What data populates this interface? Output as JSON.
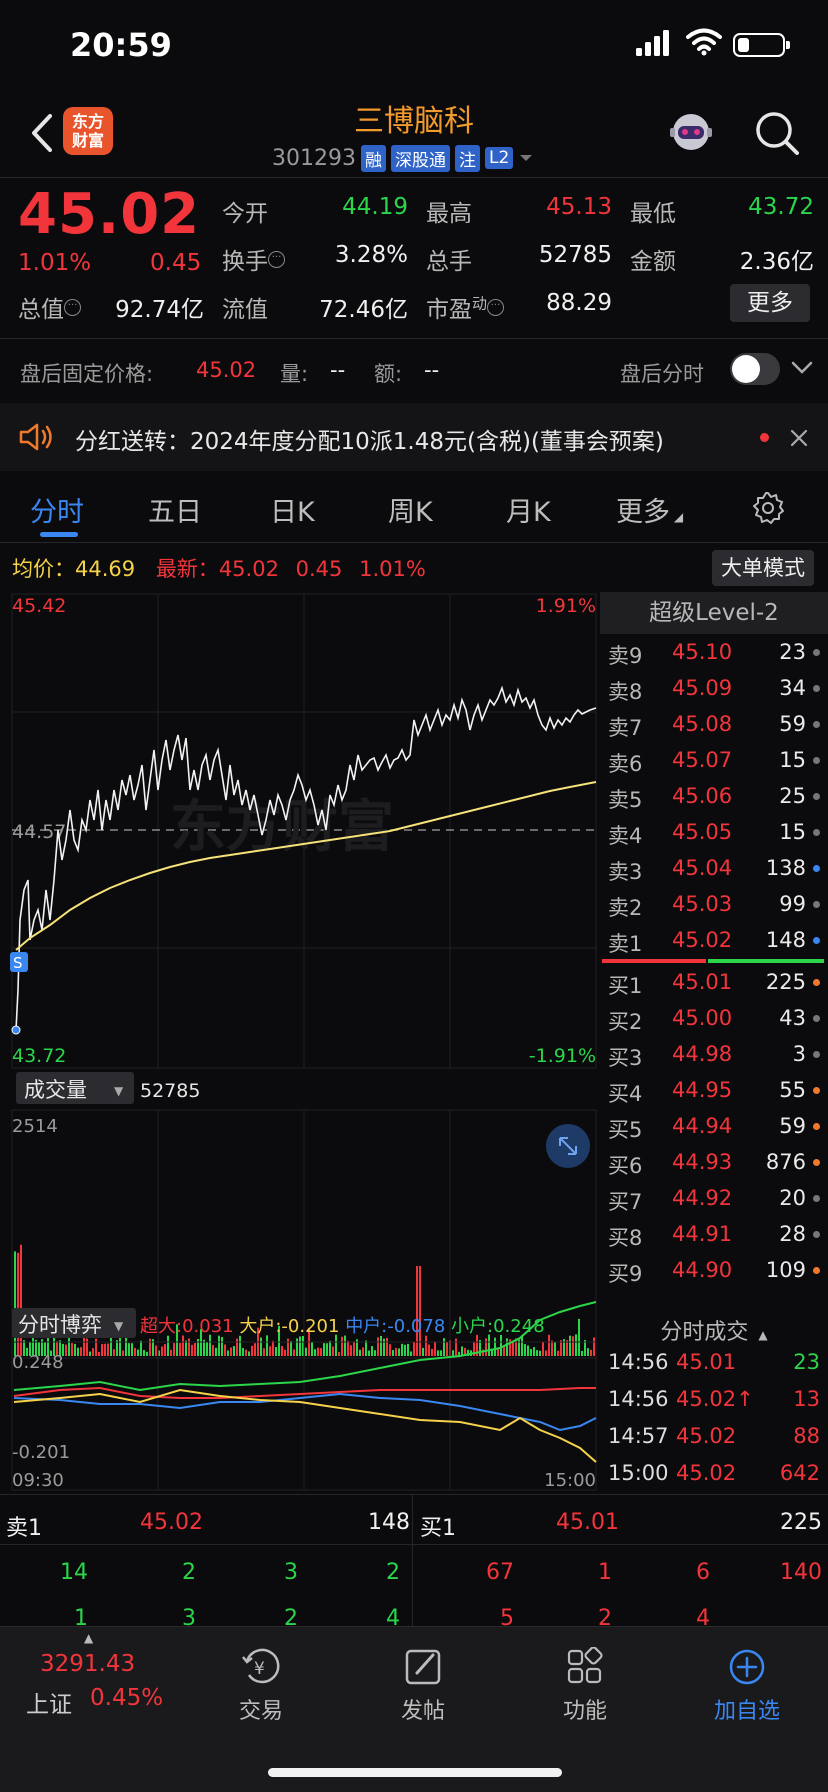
{
  "status": {
    "time": "20:59"
  },
  "header": {
    "logo_line1": "东方",
    "logo_line2": "财富",
    "stock_name": "三博脑科",
    "stock_code": "301293",
    "tags": [
      "融",
      "深股通",
      "注",
      "L2"
    ]
  },
  "quote": {
    "price": "45.02",
    "change_pct": "1.01%",
    "change": "0.45",
    "open_label": "今开",
    "open": "44.19",
    "high_label": "最高",
    "high": "45.13",
    "low_label": "最低",
    "low": "43.72",
    "turnover_label": "换手",
    "turnover": "3.28%",
    "volume_label": "总手",
    "volume": "52785",
    "amount_label": "金额",
    "amount": "2.36亿",
    "mktcap_label": "总值",
    "mktcap": "92.74亿",
    "float_label": "流值",
    "float": "72.46亿",
    "pe_label": "市盈",
    "pe_sup": "动",
    "pe": "88.29",
    "more_label": "更多"
  },
  "after_hours": {
    "price_label": "盘后固定价格:",
    "price": "45.02",
    "vol_label": "量:",
    "vol": "--",
    "amt_label": "额:",
    "amt": "--",
    "toggle_label": "盘后分时"
  },
  "notice": {
    "text": "分红送转：2024年度分配10派1.48元(含税)(董事会预案)"
  },
  "tabs": [
    "分时",
    "五日",
    "日K",
    "周K",
    "月K",
    "更多"
  ],
  "chart": {
    "avg_label": "均价：",
    "avg": "44.69",
    "latest_label": "最新：",
    "latest": "45.02",
    "latest_change": "0.45",
    "latest_pct": "1.01%",
    "big_order_label": "大单模式",
    "y_top": "45.42",
    "y_mid": "44.57",
    "y_bottom": "43.72",
    "pct_top": "1.91%",
    "pct_bottom": "-1.91%",
    "s_marker": "S",
    "watermark": "东方财富",
    "volume_label": "成交量",
    "volume_total": "52785",
    "volume_max": "2514",
    "game_label": "分时博弈",
    "game_super_label": "超大:",
    "game_super": "0.031",
    "game_large_label": "大户:",
    "game_large": "-0.201",
    "game_medium_label": "中户:",
    "game_medium": "-0.078",
    "game_small_label": "小户:",
    "game_small": "0.248",
    "game_top": "0.248",
    "game_bottom": "-0.201",
    "time_start": "09:30",
    "time_end": "15:00"
  },
  "level2": {
    "title": "超级Level-2",
    "asks": [
      {
        "label": "卖9",
        "price": "45.10",
        "vol": "23",
        "dot": "#777"
      },
      {
        "label": "卖8",
        "price": "45.09",
        "vol": "34",
        "dot": "#777"
      },
      {
        "label": "卖7",
        "price": "45.08",
        "vol": "59",
        "dot": "#777"
      },
      {
        "label": "卖6",
        "price": "45.07",
        "vol": "15",
        "dot": "#777"
      },
      {
        "label": "卖5",
        "price": "45.06",
        "vol": "25",
        "dot": "#777"
      },
      {
        "label": "卖4",
        "price": "45.05",
        "vol": "15",
        "dot": "#777"
      },
      {
        "label": "卖3",
        "price": "45.04",
        "vol": "138",
        "dot": "#3a87f2"
      },
      {
        "label": "卖2",
        "price": "45.03",
        "vol": "99",
        "dot": "#777"
      },
      {
        "label": "卖1",
        "price": "45.02",
        "vol": "148",
        "dot": "#3a87f2"
      }
    ],
    "bids": [
      {
        "label": "买1",
        "price": "45.01",
        "vol": "225",
        "dot": "#f07a2a"
      },
      {
        "label": "买2",
        "price": "45.00",
        "vol": "43",
        "dot": "#777"
      },
      {
        "label": "买3",
        "price": "44.98",
        "vol": "3",
        "dot": "#777"
      },
      {
        "label": "买4",
        "price": "44.95",
        "vol": "55",
        "dot": "#f07a2a"
      },
      {
        "label": "买5",
        "price": "44.94",
        "vol": "59",
        "dot": "#f07a2a"
      },
      {
        "label": "买6",
        "price": "44.93",
        "vol": "876",
        "dot": "#f07a2a"
      },
      {
        "label": "买7",
        "price": "44.92",
        "vol": "20",
        "dot": "#777"
      },
      {
        "label": "买8",
        "price": "44.91",
        "vol": "28",
        "dot": "#777"
      },
      {
        "label": "买9",
        "price": "44.90",
        "vol": "109",
        "dot": "#f07a2a"
      }
    ],
    "trades_title": "分时成交",
    "trades": [
      {
        "time": "14:56",
        "price": "45.01",
        "vol": "23",
        "color": "green"
      },
      {
        "time": "14:56",
        "price": "45.02↑",
        "vol": "13",
        "color": "red"
      },
      {
        "time": "14:57",
        "price": "45.02",
        "vol": "88",
        "color": "red"
      },
      {
        "time": "15:00",
        "price": "45.02",
        "vol": "642",
        "color": "red"
      }
    ]
  },
  "orderbook": {
    "sell_label": "卖1",
    "sell_price": "45.02",
    "sell_vol": "148",
    "buy_label": "买1",
    "buy_price": "45.01",
    "buy_vol": "225",
    "sell_queue_row1": [
      "14",
      "2",
      "3",
      "2"
    ],
    "buy_queue_row1": [
      "67",
      "1",
      "6",
      "140"
    ],
    "sell_queue_row2": [
      "1",
      "3",
      "2",
      "4"
    ],
    "buy_queue_row2": [
      "5",
      "2",
      "4",
      ""
    ]
  },
  "nav": {
    "index_value": "3291.43",
    "index_name": "上证",
    "index_pct": "0.45%",
    "trade": "交易",
    "post": "发帖",
    "func": "功能",
    "add": "加自选"
  }
}
